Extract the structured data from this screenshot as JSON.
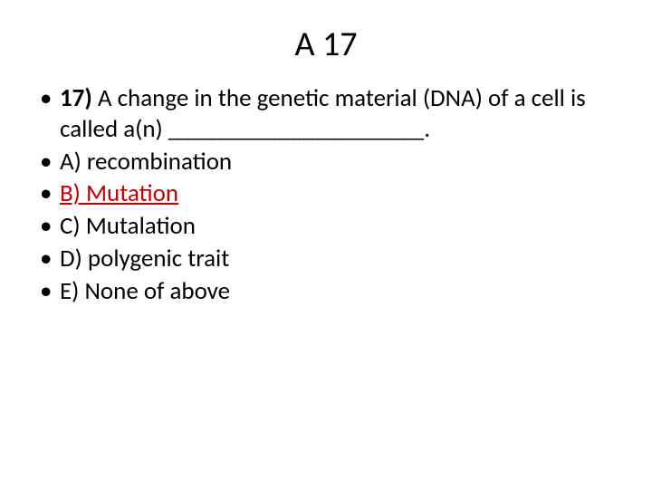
{
  "title": "A 17",
  "question": {
    "number_label": "17)",
    "text_after_number": " A change in the genetic material (DNA) of a cell is called a(n) _____________________."
  },
  "options": [
    {
      "label": "A) recombination",
      "is_answer": false,
      "indent": false
    },
    {
      "label": "B) Mutation    ",
      "is_answer": true,
      "indent": false
    },
    {
      "label": "C) Mutalation",
      "is_answer": false,
      "indent": false
    },
    {
      "label": " D) polygenic trait",
      "is_answer": false,
      "indent": true
    },
    {
      "label": "E) None of above",
      "is_answer": false,
      "indent": false
    }
  ],
  "colors": {
    "text": "#000000",
    "answer": "#c00000",
    "background": "#ffffff"
  },
  "typography": {
    "title_fontsize_pt": 38,
    "body_fontsize_pt": 27,
    "font_family": "Calibri"
  }
}
